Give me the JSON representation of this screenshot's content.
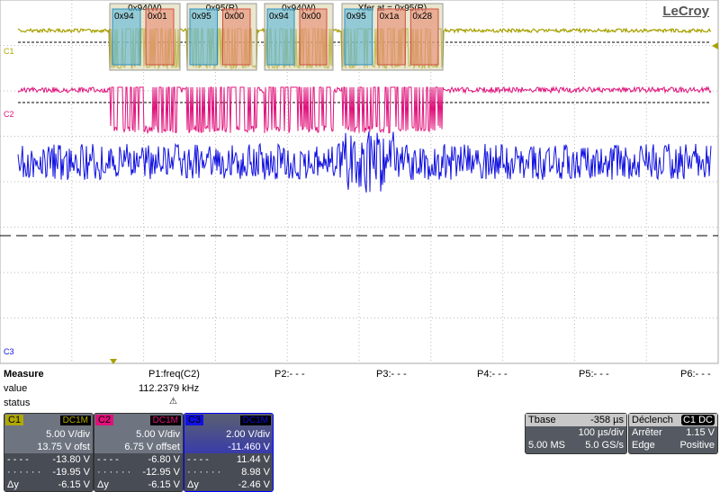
{
  "brand": "LeCroy",
  "channels": {
    "c1": "C1",
    "c2": "C2",
    "c3": "C3"
  },
  "decode": [
    {
      "title": "0x94(W)",
      "bytes": [
        "0x94",
        "0x01"
      ]
    },
    {
      "title": "0x95(R)",
      "bytes": [
        "0x95",
        "0x00"
      ]
    },
    {
      "title": "0x94(W)",
      "bytes": [
        "0x94",
        "0x00"
      ]
    },
    {
      "title": "Xfer at = 0x95(R)",
      "bytes": [
        "0x95",
        "0x1a",
        "0x28"
      ]
    }
  ],
  "measure": {
    "label": "Measure",
    "value_label": "value",
    "status_label": "status",
    "status_icon": "warning-icon",
    "params": [
      {
        "name": "P1:freq(C2)",
        "value": "112.2379 kHz"
      },
      {
        "name": "P2:- - -"
      },
      {
        "name": "P3:- - -"
      },
      {
        "name": "P4:- - -"
      },
      {
        "name": "P5:- - -"
      },
      {
        "name": "P6:- - -"
      }
    ]
  },
  "panels": [
    {
      "ch": "C1",
      "coupling": "DC1M",
      "vdiv": "5.00 V/div",
      "offset": "13.75 V ofst",
      "c1": "-13.80 V",
      "c2": "-19.95 V",
      "dy": "-6.15 V",
      "color": "#b0a800"
    },
    {
      "ch": "C2",
      "coupling": "DC1M",
      "vdiv": "5.00 V/div",
      "offset": "6.75 V offset",
      "c1": "-6.80 V",
      "c2": "-12.95 V",
      "dy": "-6.15 V",
      "color": "#e0107a"
    },
    {
      "ch": "C3",
      "coupling": "DC1M",
      "vdiv": "2.00 V/div",
      "offset": "-11.460 V",
      "c1": "11.44 V",
      "c2": "8.98 V",
      "dy": "-2.46 V",
      "color": "#1010e0"
    }
  ],
  "cursor_labels": {
    "c1": "- - - -",
    "c2": "· · · · · ·",
    "dy": "Δy"
  },
  "timebase": {
    "label": "Tbase",
    "delay": "-358 µs",
    "tdiv": "100 µs/div",
    "samples": "5.00 MS",
    "rate": "5.0 GS/s"
  },
  "trigger": {
    "label": "Déclench",
    "source": "C1 DC",
    "mode": "Arrêter",
    "level": "1.15 V",
    "type": "Edge",
    "slope": "Positive"
  }
}
